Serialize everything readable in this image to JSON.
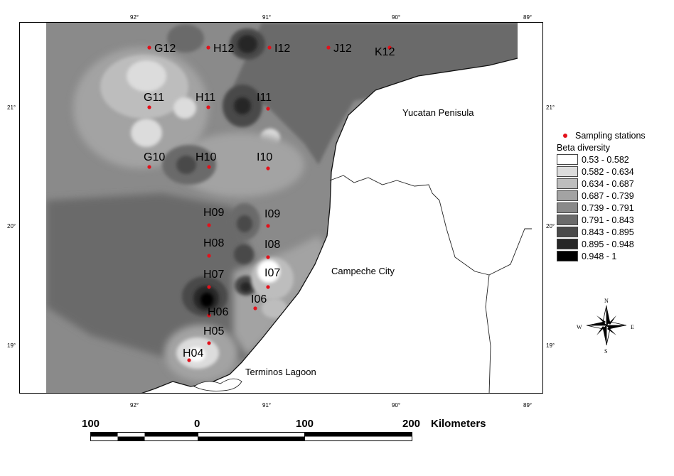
{
  "map": {
    "lon_ticks": [
      "92°",
      "91°",
      "90°",
      "89°"
    ],
    "lat_ticks": [
      "21°",
      "20°",
      "19°"
    ],
    "places": {
      "yucatan": "Yucatan Penisula",
      "campeche": "Campeche City",
      "terminos": "Terminos Lagoon"
    },
    "stations": [
      "G12",
      "H12",
      "I12",
      "J12",
      "K12",
      "G11",
      "H11",
      "I11",
      "G10",
      "H10",
      "I10",
      "H09",
      "I09",
      "H08",
      "I08",
      "H07",
      "I07",
      "H06",
      "I06",
      "H05",
      "H04"
    ],
    "station_color": "#e3111b",
    "land_color": "#ffffff",
    "sea_base_color": "#8a8a8a"
  },
  "legend": {
    "stations_label": "Sampling stations",
    "title": "Beta diversity",
    "classes": [
      {
        "range": "0.53 - 0.582",
        "color": "#ffffff"
      },
      {
        "range": "0.582 - 0.634",
        "color": "#dcdcdc"
      },
      {
        "range": "0.634 - 0.687",
        "color": "#bdbdbd"
      },
      {
        "range": "0.687 - 0.739",
        "color": "#a3a3a3"
      },
      {
        "range": "0.739 - 0.791",
        "color": "#8a8a8a"
      },
      {
        "range": "0.791 - 0.843",
        "color": "#6b6b6b"
      },
      {
        "range": "0.843 - 0.895",
        "color": "#4a4a4a"
      },
      {
        "range": "0.895 - 0.948",
        "color": "#262626"
      },
      {
        "range": "0.948 - 1",
        "color": "#000000"
      }
    ]
  },
  "compass": {
    "n": "N",
    "s": "S",
    "e": "E",
    "w": "W"
  },
  "scale": {
    "labels": [
      "100",
      "0",
      "100",
      "200"
    ],
    "unit": "Kilometers"
  }
}
